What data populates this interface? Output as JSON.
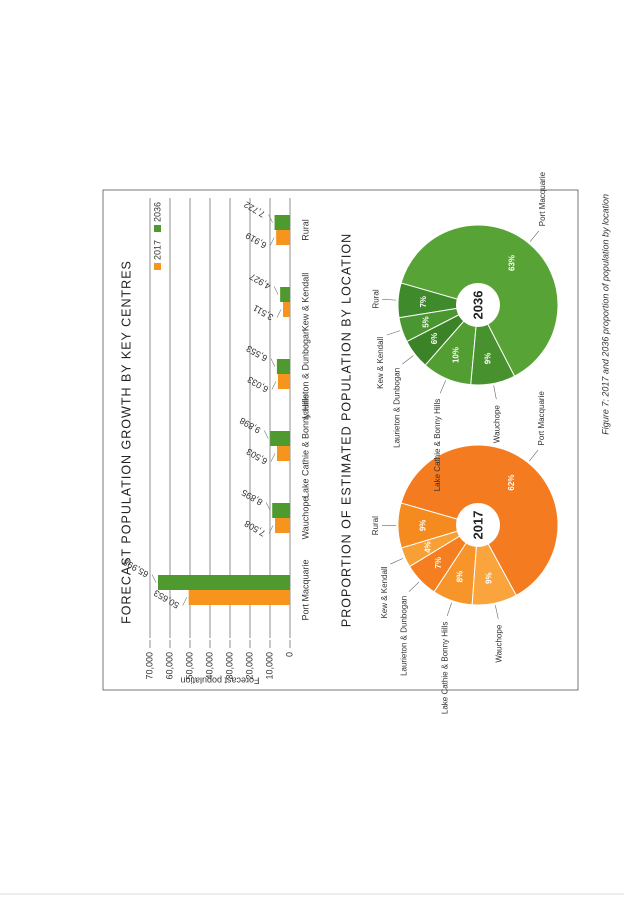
{
  "caption": "Figure 7: 2017 and 2036 proportion of population by location",
  "chart_data": [
    {
      "type": "bar",
      "title": "FORECAST POPULATION GROWTH BY KEY CENTRES",
      "y_label": "Forecast population",
      "categories": [
        "Port Macquarie",
        "Wauchope",
        "Lake Cathie & Bonny Hills",
        "Laurieton & Dunbogan",
        "Kew & Kendall",
        "Rural"
      ],
      "series": [
        {
          "name": "2017",
          "color": "#f7941d",
          "values": [
            50653,
            7508,
            6503,
            6033,
            3511,
            6919
          ],
          "value_labels": [
            "50,653",
            "7,508",
            "6,503",
            "6,033",
            "3,511",
            "6,919"
          ]
        },
        {
          "name": "2036",
          "color": "#4e9a2e",
          "values": [
            65998,
            8895,
            9898,
            6553,
            4927,
            7722
          ],
          "value_labels": [
            "65,998",
            "8,895",
            "9,898",
            "6,553",
            "4,927",
            "7,722"
          ]
        }
      ],
      "ylim": [
        0,
        70000
      ],
      "yticks": [
        0,
        {
          "value": 10000,
          "label": "10,000"
        },
        {
          "value": 20000,
          "label": "20,000"
        },
        {
          "value": 30000,
          "label": "30,000"
        },
        {
          "value": 40000,
          "label": "40,000"
        },
        {
          "value": 50000,
          "label": "50,000"
        },
        {
          "value": 60000,
          "label": "60,000"
        },
        {
          "value": 70000,
          "label": "70,000"
        }
      ],
      "grid": true,
      "legend": "upper right"
    },
    {
      "type": "pie",
      "title": "PROPORTION OF ESTIMATED POPULATION BY LOCATION",
      "center_label": "2017",
      "categories": [
        "Rural",
        "Kew & Kendall",
        "Laurieton & Dunbogan",
        "Lake Cathie & Bonny Hills",
        "Wauchope",
        "Port Macquarie"
      ],
      "values": [
        9,
        4,
        7,
        8,
        9,
        62
      ],
      "value_labels": [
        "9%",
        "4%",
        "7%",
        "8%",
        "9%",
        "62%"
      ],
      "colors": [
        "#f58a1f",
        "#f7a036",
        "#f57f20",
        "#f8952a",
        "#f9a43c",
        "#f47b20"
      ]
    },
    {
      "type": "pie",
      "center_label": "2036",
      "categories": [
        "Rural",
        "Kew & Kendall",
        "Laurieton & Dunbogan",
        "Lake Cathie & Bonny Hills",
        "Wauchope",
        "Port Macquarie"
      ],
      "values": [
        7,
        5,
        6,
        10,
        9,
        63
      ],
      "value_labels": [
        "7%",
        "5%",
        "6%",
        "10%",
        "9%",
        "63%"
      ],
      "colors": [
        "#3f8a2a",
        "#4a9630",
        "#3c8328",
        "#539e33",
        "#47922e",
        "#57a336"
      ]
    }
  ]
}
